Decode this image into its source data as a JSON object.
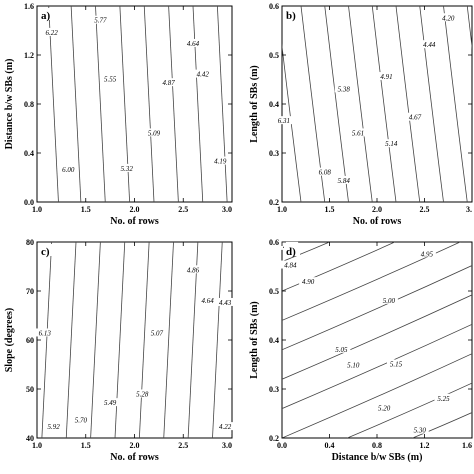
{
  "colors": {
    "line": "#444444",
    "axis": "#000000",
    "background": "#ffffff"
  },
  "chart_data": [
    {
      "id": "a",
      "panel_label": "a)",
      "type": "contour",
      "xlabel": "No. of rows",
      "ylabel": "Distance b/w SBs (m)",
      "xlim": [
        1.0,
        3.0
      ],
      "ylim": [
        0.0,
        1.6
      ],
      "xticks": [
        "1.0",
        "1.5",
        "2.0",
        "2.5",
        "3.0"
      ],
      "yticks": [
        "0.0",
        "0.4",
        "0.8",
        "1.2",
        "1.6"
      ],
      "grid": false,
      "lines": [
        {
          "bottom": 1.22,
          "top": 1.12
        },
        {
          "bottom": 1.45,
          "top": 1.35
        },
        {
          "bottom": 1.7,
          "top": 1.6
        },
        {
          "bottom": 1.95,
          "top": 1.85
        },
        {
          "bottom": 2.2,
          "top": 2.1
        },
        {
          "bottom": 2.45,
          "top": 2.35
        },
        {
          "bottom": 2.7,
          "top": 2.6
        },
        {
          "bottom": 2.95,
          "top": 2.85
        }
      ],
      "labels": [
        {
          "text": "6.22",
          "x": 1.15,
          "y": 1.38
        },
        {
          "text": "5.77",
          "x": 1.65,
          "y": 1.48
        },
        {
          "text": "4.64",
          "x": 2.6,
          "y": 1.29
        },
        {
          "text": "5.55",
          "x": 1.75,
          "y": 1.0
        },
        {
          "text": "4.87",
          "x": 2.35,
          "y": 0.97
        },
        {
          "text": "4.42",
          "x": 2.7,
          "y": 1.04
        },
        {
          "text": "5.09",
          "x": 2.2,
          "y": 0.56
        },
        {
          "text": "6.00",
          "x": 1.32,
          "y": 0.26
        },
        {
          "text": "5.32",
          "x": 1.92,
          "y": 0.27
        },
        {
          "text": "4.19",
          "x": 2.88,
          "y": 0.33
        }
      ]
    },
    {
      "id": "b",
      "panel_label": "b)",
      "type": "contour",
      "xlabel": "No. of rows",
      "ylabel": "Length of SBs (m)",
      "xlim": [
        1.0,
        3.0
      ],
      "ylim": [
        0.2,
        0.6
      ],
      "xticks": [
        "1.0",
        "1.5",
        "2.0",
        "2.5",
        "3."
      ],
      "yticks": [
        "0.2",
        "0.3",
        "0.4",
        "0.5",
        "0.6"
      ],
      "grid": false,
      "lines": [
        {
          "bottom": 1.2,
          "top": 0.95
        },
        {
          "bottom": 1.45,
          "top": 1.2
        },
        {
          "bottom": 1.7,
          "top": 1.45
        },
        {
          "bottom": 1.95,
          "top": 1.7
        },
        {
          "bottom": 2.2,
          "top": 1.95
        },
        {
          "bottom": 2.45,
          "top": 2.2
        },
        {
          "bottom": 2.7,
          "top": 2.45
        },
        {
          "bottom": 2.95,
          "top": 2.7
        },
        {
          "bottom": 3.2,
          "top": 2.95
        }
      ],
      "labels": [
        {
          "text": "4.20",
          "x": 2.75,
          "y": 0.575
        },
        {
          "text": "4.44",
          "x": 2.55,
          "y": 0.52
        },
        {
          "text": "4.91",
          "x": 2.1,
          "y": 0.455
        },
        {
          "text": "5.38",
          "x": 1.65,
          "y": 0.43
        },
        {
          "text": "6.31",
          "x": 1.02,
          "y": 0.365
        },
        {
          "text": "4.67",
          "x": 2.4,
          "y": 0.372
        },
        {
          "text": "5.61",
          "x": 1.8,
          "y": 0.34
        },
        {
          "text": "5.14",
          "x": 2.15,
          "y": 0.318
        },
        {
          "text": "6.08",
          "x": 1.45,
          "y": 0.26
        },
        {
          "text": "5.84",
          "x": 1.65,
          "y": 0.243
        }
      ]
    },
    {
      "id": "c",
      "panel_label": "c)",
      "type": "contour",
      "xlabel": "No. of rows",
      "ylabel": "Slope (degrees)",
      "xlim": [
        1.0,
        3.0
      ],
      "ylim": [
        35,
        80
      ],
      "xticks": [
        "1.0",
        "1.5",
        "2.0",
        "2.5",
        "3.0"
      ],
      "yticks": [
        "40",
        "50",
        "60",
        "70",
        "80"
      ],
      "grid": false,
      "lines": [
        {
          "bottom": 1.05,
          "top": 1.15
        },
        {
          "bottom": 1.3,
          "top": 1.4
        },
        {
          "bottom": 1.55,
          "top": 1.65
        },
        {
          "bottom": 1.8,
          "top": 1.9
        },
        {
          "bottom": 2.05,
          "top": 2.15
        },
        {
          "bottom": 2.3,
          "top": 2.4
        },
        {
          "bottom": 2.55,
          "top": 2.65
        },
        {
          "bottom": 2.8,
          "top": 2.9
        },
        {
          "bottom": 3.0,
          "top": 3.1
        }
      ],
      "labels": [
        {
          "text": "4.86",
          "x": 2.6,
          "y": 73.5
        },
        {
          "text": "4.64",
          "x": 2.75,
          "y": 66.5
        },
        {
          "text": "4.43",
          "x": 2.93,
          "y": 66.0
        },
        {
          "text": "6.13",
          "x": 1.08,
          "y": 59.0
        },
        {
          "text": "5.07",
          "x": 2.23,
          "y": 59.0
        },
        {
          "text": "5.28",
          "x": 2.08,
          "y": 45.0
        },
        {
          "text": "5.49",
          "x": 1.75,
          "y": 43.0
        },
        {
          "text": "5.70",
          "x": 1.45,
          "y": 39.0
        },
        {
          "text": "5.92",
          "x": 1.17,
          "y": 37.5
        },
        {
          "text": "4.22",
          "x": 2.93,
          "y": 37.5
        }
      ]
    },
    {
      "id": "d",
      "panel_label": "d)",
      "type": "contour",
      "xlabel": "Distance b/w SBs (m)",
      "ylabel": "Length of SBs (m)",
      "xlim": [
        0.0,
        1.6
      ],
      "ylim": [
        0.2,
        0.6
      ],
      "xticks": [
        "0.0",
        "0.4",
        "0.8",
        "1.2",
        "1.6"
      ],
      "yticks": [
        "0.2",
        "0.3",
        "0.4",
        "0.5",
        "0.6"
      ],
      "grid": false,
      "lines": [
        {
          "x0": 0.0,
          "y0": 0.56,
          "x1": 0.4,
          "y1": 0.6
        },
        {
          "x0": 0.0,
          "y0": 0.5,
          "x1": 0.95,
          "y1": 0.6
        },
        {
          "x0": 0.0,
          "y0": 0.44,
          "x1": 1.5,
          "y1": 0.6
        },
        {
          "x0": 0.0,
          "y0": 0.38,
          "x1": 1.6,
          "y1": 0.552
        },
        {
          "x0": 0.0,
          "y0": 0.32,
          "x1": 1.6,
          "y1": 0.492
        },
        {
          "x0": 0.0,
          "y0": 0.26,
          "x1": 1.6,
          "y1": 0.432
        },
        {
          "x0": 0.0,
          "y0": 0.2,
          "x1": 1.6,
          "y1": 0.372
        },
        {
          "x0": 0.55,
          "y0": 0.2,
          "x1": 1.6,
          "y1": 0.312
        },
        {
          "x0": 1.1,
          "y0": 0.2,
          "x1": 1.6,
          "y1": 0.252
        }
      ],
      "labels": [
        {
          "text": "4.79",
          "x": 0.06,
          "y": 0.59
        },
        {
          "text": "4.84",
          "x": 0.07,
          "y": 0.552
        },
        {
          "text": "4.95",
          "x": 1.22,
          "y": 0.575
        },
        {
          "text": "4.90",
          "x": 0.22,
          "y": 0.518
        },
        {
          "text": "5.00",
          "x": 0.9,
          "y": 0.48
        },
        {
          "text": "5.05",
          "x": 0.5,
          "y": 0.38
        },
        {
          "text": "5.10",
          "x": 0.6,
          "y": 0.348
        },
        {
          "text": "5.15",
          "x": 0.96,
          "y": 0.35
        },
        {
          "text": "5.20",
          "x": 0.86,
          "y": 0.26
        },
        {
          "text": "5.25",
          "x": 1.36,
          "y": 0.28
        },
        {
          "text": "5.30",
          "x": 1.16,
          "y": 0.215
        }
      ]
    }
  ]
}
